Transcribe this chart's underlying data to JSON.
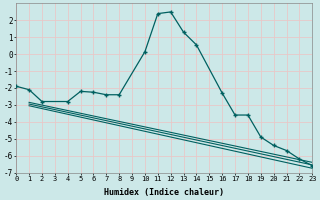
{
  "xlabel": "Humidex (Indice chaleur)",
  "background_color": "#cce8e8",
  "grid_color": "#e8c8c8",
  "line_color": "#006060",
  "xlim": [
    0,
    23
  ],
  "ylim": [
    -7,
    3
  ],
  "xticks": [
    0,
    1,
    2,
    3,
    4,
    5,
    6,
    7,
    8,
    9,
    10,
    11,
    12,
    13,
    14,
    15,
    16,
    17,
    18,
    19,
    20,
    21,
    22,
    23
  ],
  "yticks": [
    -7,
    -6,
    -5,
    -4,
    -3,
    -2,
    -1,
    0,
    1,
    2
  ],
  "series1_x": [
    0,
    1,
    2,
    4,
    5,
    6,
    7,
    8,
    10,
    11,
    12,
    13,
    14,
    16,
    17,
    18,
    19,
    20,
    21,
    22,
    23
  ],
  "series1_y": [
    -1.9,
    -2.1,
    -2.8,
    -2.8,
    -2.2,
    -2.25,
    -2.4,
    -2.4,
    0.15,
    2.4,
    2.5,
    1.3,
    0.55,
    -2.3,
    -3.6,
    -3.6,
    -4.9,
    -5.4,
    -5.7,
    -6.2,
    -6.6
  ],
  "series2_x": [
    1,
    23
  ],
  "series2_y": [
    -2.85,
    -6.4
  ],
  "series3_x": [
    1,
    23
  ],
  "series3_y": [
    -2.95,
    -6.55
  ],
  "series4_x": [
    1,
    23
  ],
  "series4_y": [
    -3.05,
    -6.75
  ]
}
